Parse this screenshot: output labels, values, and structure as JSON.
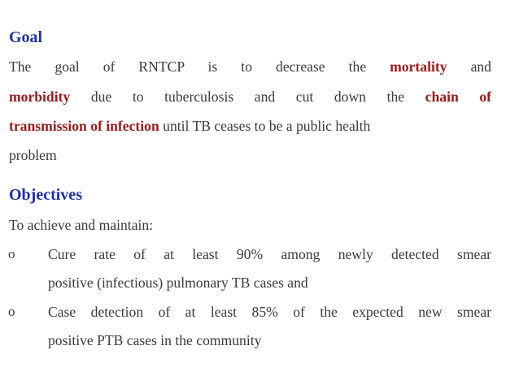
{
  "goal": {
    "heading": "Goal",
    "p1": "The goal of RNTCP is to decrease the",
    "mortality": "mortality",
    "p2": "and",
    "morbidity": "morbidity",
    "p3": "due to tuberculosis and cut down the",
    "chain_of": "chain of",
    "transmission": "transmission of infection",
    "p4": "until TB ceases to be a public health",
    "p5": "problem"
  },
  "objectives": {
    "heading": "Objectives",
    "intro": "To achieve and maintain:",
    "bullet_glyph": "o",
    "items": [
      {
        "line1": "Cure rate of at least 90% among newly detected smear",
        "line2": "positive (infectious) pulmonary TB cases and"
      },
      {
        "line1": "Case detection of at least 85% of the expected new smear",
        "line2": "positive PTB cases in the community"
      }
    ]
  }
}
